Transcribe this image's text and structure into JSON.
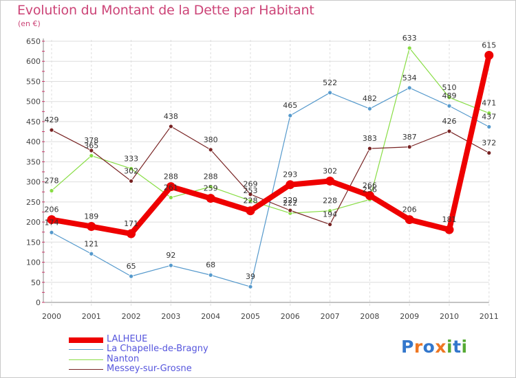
{
  "title": "Evolution du Montant de la Dette par Habitant",
  "unit": "(en €)",
  "logo": {
    "letters": [
      "P",
      "r",
      "o",
      "x",
      "i",
      "t",
      "i"
    ],
    "colors": [
      "#3377cc",
      "#ee7722",
      "#3377cc",
      "#ee7722",
      "#55aa33",
      "#3377cc",
      "#55aa33"
    ]
  },
  "chart_data": {
    "type": "line",
    "x": [
      "2000",
      "2001",
      "2002",
      "2003",
      "2004",
      "2005",
      "2006",
      "2007",
      "2008",
      "2009",
      "2010",
      "2011"
    ],
    "ylim": [
      0,
      650
    ],
    "yticks": [
      0,
      50,
      100,
      150,
      200,
      250,
      300,
      350,
      400,
      450,
      500,
      550,
      600,
      650
    ],
    "grid": true,
    "legend_position": "bottom-left",
    "series": [
      {
        "name": "LALHEUE",
        "color": "#ee0000",
        "width": 8,
        "values": [
          206,
          189,
          171,
          288,
          259,
          228,
          293,
          302,
          266,
          206,
          181,
          615
        ]
      },
      {
        "name": "La Chapelle-de-Bragny",
        "color": "#5599cc",
        "width": 1.2,
        "values": [
          174,
          121,
          65,
          92,
          68,
          39,
          465,
          522,
          482,
          534,
          489,
          437
        ]
      },
      {
        "name": "Nanton",
        "color": "#88dd44",
        "width": 1.2,
        "values": [
          278,
          365,
          333,
          261,
          288,
          253,
          222,
          228,
          256,
          633,
          510,
          471
        ]
      },
      {
        "name": "Messey-sur-Grosne",
        "color": "#772222",
        "width": 1.2,
        "values": [
          429,
          378,
          302,
          438,
          380,
          269,
          229,
          194,
          383,
          387,
          426,
          372
        ]
      }
    ]
  }
}
